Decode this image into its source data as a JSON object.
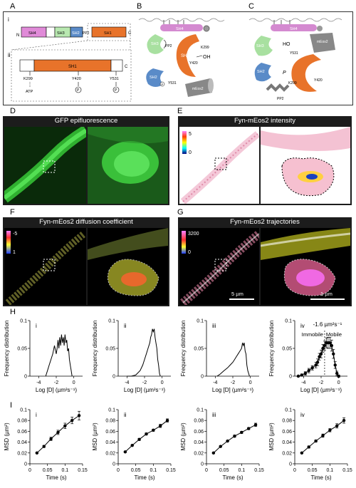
{
  "figure": {
    "panel_letters": [
      "A",
      "B",
      "C",
      "D",
      "E",
      "F",
      "G",
      "H",
      "I"
    ],
    "A": {
      "roman": [
        "i",
        "ii"
      ],
      "domains_full": [
        "N",
        "SH4",
        "SH3",
        "SH2",
        "PP2",
        "SH1",
        "C"
      ],
      "domains_zoom": [
        "SH1",
        "C"
      ],
      "sites": [
        "K299",
        "Y420",
        "Y531"
      ],
      "site_annot": [
        "ATP",
        "P",
        "P"
      ]
    },
    "B": {
      "labels": [
        "SH4",
        "SH3",
        "PP2",
        "SH1",
        "Y420",
        "OH",
        "K299",
        "SH2",
        "Y531",
        "P",
        "mEos2"
      ]
    },
    "C": {
      "labels": [
        "SH4",
        "SH3",
        "HO",
        "Y531",
        "mEos2",
        "SH1",
        "SH2",
        "P",
        "K299",
        "Y420",
        "PP2"
      ]
    },
    "D": {
      "title": "GFP epifluorescence"
    },
    "E": {
      "title": "Fyn-mEos2  intensity",
      "scale_max": "5",
      "scale_min": "0"
    },
    "F": {
      "title": "Fyn-mEos2 diffusion coefficient",
      "scale_top": "-5",
      "scale_bottom": "1"
    },
    "G": {
      "title": "Fyn-mEos2 trajectories",
      "scale_top": "3200",
      "scale_bottom": "0",
      "scalebar_left": "5 µm",
      "scalebar_right": "1 µm"
    },
    "H": {
      "annot_value": "-1.6 µm²s⁻¹",
      "annot_left": "Immobile",
      "annot_right": "Mobile"
    },
    "I": {}
  },
  "chart_data": [
    {
      "type": "line",
      "panel": "H",
      "roman": "i",
      "xlabel": "Log [D] (µm²s⁻¹)",
      "ylabel": "Frequency distribution",
      "xlim": [
        -5,
        1
      ],
      "ylim": [
        0,
        0.1
      ],
      "xticks": [
        "-4",
        "-2",
        "0"
      ],
      "yticks": [
        "0",
        "0.05",
        "0.1"
      ],
      "x": [
        -3.2,
        -3.0,
        -2.8,
        -2.6,
        -2.4,
        -2.2,
        -2.0,
        -1.9,
        -1.8,
        -1.7,
        -1.6,
        -1.5,
        -1.4,
        -1.3,
        -1.2,
        -1.1,
        -1.0,
        -0.9,
        -0.8,
        -0.7,
        -0.6,
        -0.5,
        -0.4,
        -0.3,
        -0.2
      ],
      "y": [
        0.0,
        0.01,
        0.02,
        0.03,
        0.04,
        0.055,
        0.04,
        0.05,
        0.065,
        0.05,
        0.07,
        0.055,
        0.075,
        0.06,
        0.07,
        0.055,
        0.075,
        0.06,
        0.065,
        0.045,
        0.05,
        0.03,
        0.02,
        0.01,
        0.0
      ]
    },
    {
      "type": "line",
      "panel": "H",
      "roman": "ii",
      "xlabel": "Log [D] (µm²s⁻¹)",
      "ylabel": "Frequency distribution",
      "xlim": [
        -5,
        1
      ],
      "ylim": [
        0,
        0.1
      ],
      "xticks": [
        "-4",
        "-2",
        "0"
      ],
      "yticks": [
        "0",
        "0.05",
        "0.1"
      ],
      "x": [
        -4.0,
        -3.5,
        -3.0,
        -2.5,
        -2.2,
        -2.0,
        -1.8,
        -1.6,
        -1.4,
        -1.3,
        -1.2,
        -1.1,
        -1.0,
        -0.9,
        -0.8,
        -0.7,
        -0.6,
        -0.5,
        -0.4,
        -0.3,
        -0.2
      ],
      "y": [
        0.0,
        0.0,
        0.002,
        0.01,
        0.02,
        0.03,
        0.04,
        0.05,
        0.06,
        0.07,
        0.075,
        0.085,
        0.08,
        0.085,
        0.07,
        0.06,
        0.05,
        0.03,
        0.02,
        0.005,
        0.0
      ]
    },
    {
      "type": "line",
      "panel": "H",
      "roman": "iii",
      "xlabel": "Log [D] (µm²s⁻¹)",
      "ylabel": "Frequency distribution",
      "xlim": [
        -5,
        1
      ],
      "ylim": [
        0,
        0.1
      ],
      "xticks": [
        "-4",
        "-2",
        "0"
      ],
      "yticks": [
        "0",
        "0.05",
        "0.1"
      ],
      "x": [
        -3.8,
        -3.5,
        -3.0,
        -2.6,
        -2.3,
        -2.0,
        -1.8,
        -1.6,
        -1.4,
        -1.2,
        -1.0,
        -0.9,
        -0.8,
        -0.7,
        -0.6,
        -0.5,
        -0.4,
        -0.3,
        -0.2,
        -0.1
      ],
      "y": [
        0.0,
        0.003,
        0.01,
        0.015,
        0.02,
        0.025,
        0.03,
        0.035,
        0.04,
        0.045,
        0.05,
        0.06,
        0.055,
        0.06,
        0.045,
        0.04,
        0.02,
        0.01,
        0.005,
        0.0
      ]
    },
    {
      "type": "line",
      "panel": "H",
      "roman": "iv",
      "xlabel": "Log [D] (µm²s⁻¹)",
      "ylabel": "Frequency distribution",
      "xlim": [
        -5,
        1
      ],
      "ylim": [
        0,
        0.1
      ],
      "xticks": [
        "-4",
        "-2",
        "0"
      ],
      "yticks": [
        "0",
        "0.05",
        "0.1"
      ],
      "x": [
        -4.6,
        -4.2,
        -3.8,
        -3.4,
        -3.0,
        -2.6,
        -2.4,
        -2.2,
        -2.0,
        -1.8,
        -1.6,
        -1.4,
        -1.2,
        -1.0,
        -0.8,
        -0.6,
        -0.4,
        -0.2,
        0.0
      ],
      "y": [
        0.0,
        0.002,
        0.005,
        0.01,
        0.015,
        0.02,
        0.025,
        0.035,
        0.04,
        0.05,
        0.055,
        0.06,
        0.06,
        0.06,
        0.055,
        0.04,
        0.02,
        0.005,
        0.0
      ],
      "err": [
        0.001,
        0.002,
        0.003,
        0.004,
        0.004,
        0.005,
        0.006,
        0.006,
        0.007,
        0.007,
        0.008,
        0.009,
        0.01,
        0.01,
        0.01,
        0.008,
        0.006,
        0.004,
        0.002
      ],
      "vline": -1.6
    },
    {
      "type": "line",
      "panel": "I",
      "roman": "i",
      "xlabel": "Time (s)",
      "ylabel": "MSD (µm²)",
      "xlim": [
        0,
        0.15
      ],
      "ylim": [
        0,
        0.1
      ],
      "xticks": [
        "0",
        "0.05",
        "0.1",
        "0.15"
      ],
      "yticks": [
        "0",
        "0.02",
        "0.04",
        "0.06",
        "0.08",
        "0.1"
      ],
      "x": [
        0.02,
        0.04,
        0.06,
        0.08,
        0.1,
        0.12,
        0.14
      ],
      "y": [
        0.02,
        0.032,
        0.046,
        0.058,
        0.07,
        0.08,
        0.089
      ],
      "err": [
        0.001,
        0.002,
        0.003,
        0.004,
        0.005,
        0.006,
        0.008
      ]
    },
    {
      "type": "line",
      "panel": "I",
      "roman": "ii",
      "xlabel": "Time (s)",
      "ylabel": "MSD (µm²)",
      "xlim": [
        0,
        0.15
      ],
      "ylim": [
        0,
        0.1
      ],
      "xticks": [
        "0",
        "0.05",
        "0.1",
        "0.15"
      ],
      "yticks": [
        "0",
        "0.02",
        "0.04",
        "0.06",
        "0.08",
        "0.1"
      ],
      "x": [
        0.02,
        0.04,
        0.06,
        0.08,
        0.1,
        0.12,
        0.14
      ],
      "y": [
        0.022,
        0.034,
        0.045,
        0.055,
        0.062,
        0.07,
        0.08
      ],
      "err": [
        0.001,
        0.001,
        0.002,
        0.002,
        0.002,
        0.003,
        0.003
      ]
    },
    {
      "type": "line",
      "panel": "I",
      "roman": "iii",
      "xlabel": "Time (s)",
      "ylabel": "MSD (µm²)",
      "xlim": [
        0,
        0.15
      ],
      "ylim": [
        0,
        0.1
      ],
      "xticks": [
        "0",
        "0.05",
        "0.1",
        "0.15"
      ],
      "yticks": [
        "0",
        "0.02",
        "0.04",
        "0.06",
        "0.08",
        "0.1"
      ],
      "x": [
        0.02,
        0.04,
        0.06,
        0.08,
        0.1,
        0.12,
        0.14
      ],
      "y": [
        0.02,
        0.032,
        0.042,
        0.051,
        0.058,
        0.065,
        0.072
      ],
      "err": [
        0.001,
        0.001,
        0.001,
        0.002,
        0.002,
        0.002,
        0.003
      ]
    },
    {
      "type": "line",
      "panel": "I",
      "roman": "iv",
      "xlabel": "Time (s)",
      "ylabel": "MSD (µm²)",
      "xlim": [
        0,
        0.15
      ],
      "ylim": [
        0,
        0.1
      ],
      "xticks": [
        "0",
        "0.05",
        "0.1",
        "0.15"
      ],
      "yticks": [
        "0",
        "0.02",
        "0.04",
        "0.06",
        "0.08",
        "0.1"
      ],
      "x": [
        0.02,
        0.04,
        0.06,
        0.08,
        0.1,
        0.12,
        0.14
      ],
      "y": [
        0.02,
        0.031,
        0.042,
        0.052,
        0.062,
        0.07,
        0.08
      ],
      "err": [
        0.001,
        0.002,
        0.002,
        0.003,
        0.003,
        0.004,
        0.005
      ]
    }
  ]
}
